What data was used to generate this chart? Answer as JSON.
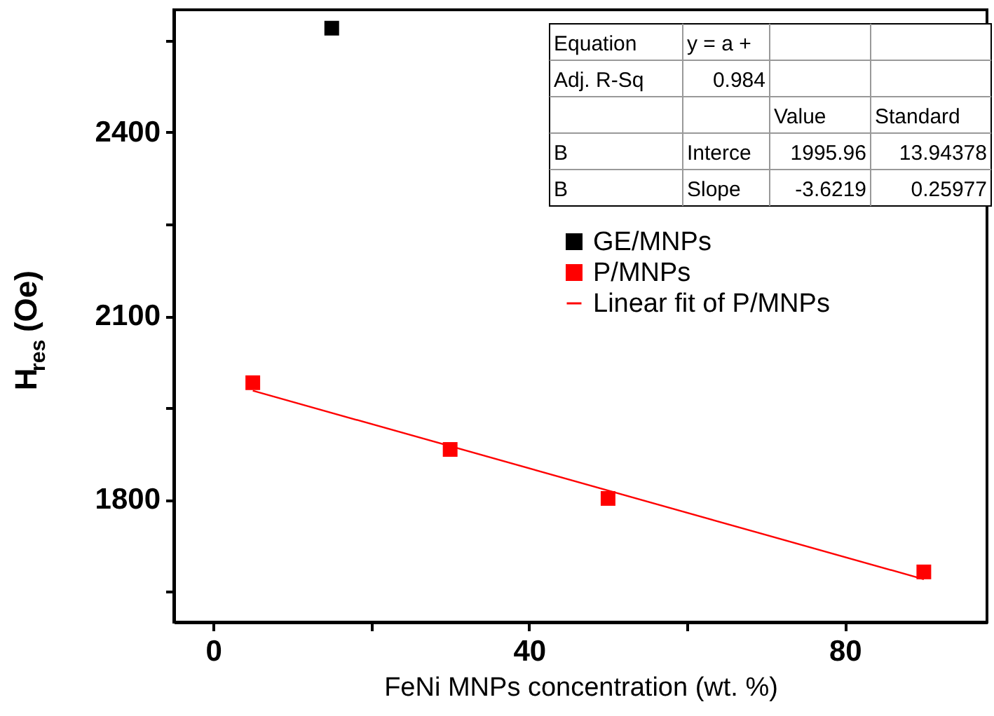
{
  "chart_data": {
    "type": "scatter",
    "xlabel": "FeNi MNPs concentration (wt. %)",
    "ylabel": "H$_{res}$ (Oe)",
    "xlim": [
      -5,
      98
    ],
    "ylim": [
      1600,
      2600
    ],
    "xticks": [
      0,
      {
        "value": 20,
        "label": null
      },
      40,
      {
        "value": 60,
        "label": null
      },
      80
    ],
    "yticks": [
      {
        "value": 1650,
        "label": null
      },
      1800,
      {
        "value": 1950,
        "label": null
      },
      2100,
      {
        "value": 2250,
        "label": null
      },
      2400,
      {
        "value": 2550,
        "label": null
      }
    ],
    "grid": false,
    "legend": "top right",
    "marker": "square",
    "series": [
      {
        "name": "GE/MNPs",
        "color": "#000000",
        "x": [
          15
        ],
        "values": [
          2570
        ]
      },
      {
        "name": "P/MNPs",
        "color": "#ff0000",
        "x": [
          5,
          30,
          50,
          90
        ],
        "values": [
          1991,
          1882,
          1802,
          1682
        ]
      },
      {
        "name": "Linear fit of P/MNPs",
        "color": "#ff0000",
        "type": "line",
        "marker": "none",
        "line_style": "solid",
        "x": [
          5,
          90
        ],
        "values": [
          1978,
          1670
        ]
      }
    ],
    "annotations": [
      "Equation",
      "y = a +",
      "Adj. R-Sq",
      "0.984",
      "Value",
      "Standard",
      "B",
      "Interce",
      "1995.96",
      "13.94378",
      "B",
      "Slope",
      "-3.6219",
      "0.25977"
    ]
  }
}
